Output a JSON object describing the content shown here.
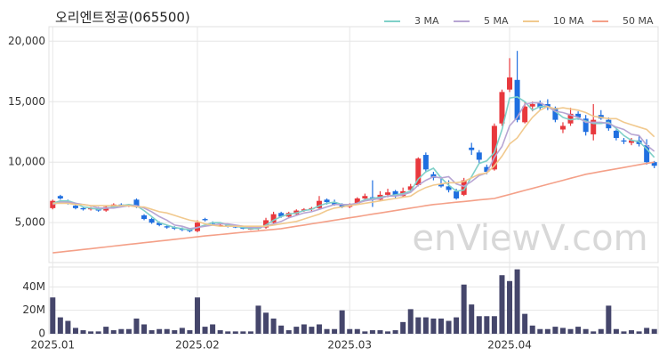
{
  "chart_data": [
    {
      "type": "candlestick",
      "title": "오리엔트정공(065500)",
      "watermark": "enViewV.com",
      "up_color": "#e8383d",
      "down_color": "#1f6fe0",
      "open": [
        6200,
        7200,
        6800,
        6400,
        6200,
        6100,
        6200,
        6000,
        6300,
        6500,
        6400,
        6900,
        5600,
        5300,
        5000,
        4700,
        4600,
        4500,
        4400,
        4300,
        5300,
        5000,
        4750,
        4800,
        4700,
        4600,
        4450,
        4500,
        4600,
        5000,
        5800,
        5500,
        5700,
        6000,
        6100,
        6200,
        6900,
        6700,
        6500,
        6300,
        6600,
        7000,
        7100,
        6900,
        7300,
        7600,
        7200,
        7700,
        8100,
        10600,
        9000,
        8200,
        8000,
        7600,
        7300,
        11200,
        10800,
        9600,
        9400,
        13200,
        16000,
        16800,
        13300,
        14600,
        14900,
        14800,
        14500,
        12700,
        13200,
        14000,
        13600,
        12300,
        13900,
        13500,
        12600,
        11800,
        11600,
        11800,
        11400,
        10000
      ],
      "high": [
        6900,
        7300,
        6900,
        6500,
        6300,
        6300,
        6300,
        6400,
        6600,
        6600,
        6500,
        7000,
        5700,
        5400,
        5100,
        4800,
        4700,
        4600,
        4500,
        5200,
        5400,
        5100,
        4900,
        4850,
        4750,
        4650,
        4600,
        4700,
        5400,
        5900,
        5900,
        5900,
        6100,
        6200,
        6300,
        7200,
        7000,
        6900,
        6600,
        6600,
        7100,
        7400,
        8500,
        7600,
        7800,
        7700,
        7900,
        8200,
        10400,
        10800,
        9200,
        8800,
        8500,
        7800,
        8700,
        11600,
        11000,
        9800,
        13200,
        16000,
        18600,
        19200,
        15000,
        15000,
        15100,
        15200,
        14600,
        13300,
        14500,
        14200,
        13900,
        14800,
        14300,
        13700,
        12700,
        12000,
        12000,
        12200,
        11900,
        10100
      ],
      "low": [
        6100,
        6900,
        6500,
        6100,
        6000,
        6000,
        5900,
        5900,
        6200,
        6300,
        6300,
        6200,
        5200,
        4900,
        4700,
        4500,
        4400,
        4300,
        4200,
        4200,
        5100,
        4800,
        4700,
        4600,
        4550,
        4450,
        4400,
        4400,
        4500,
        4900,
        5400,
        5400,
        5600,
        5900,
        5900,
        6100,
        6500,
        6400,
        6200,
        6200,
        6500,
        6900,
        6300,
        6800,
        7100,
        7000,
        7100,
        7500,
        8000,
        9200,
        8500,
        7900,
        7500,
        6900,
        7200,
        10600,
        9900,
        9000,
        9300,
        13000,
        15800,
        13300,
        13200,
        14200,
        14300,
        14300,
        13300,
        12400,
        13000,
        13500,
        12200,
        11800,
        13500,
        12600,
        11800,
        11500,
        11400,
        11300,
        9800,
        9500
      ],
      "close": [
        6800,
        7000,
        6600,
        6200,
        6100,
        6200,
        6000,
        6300,
        6500,
        6400,
        6500,
        6300,
        5300,
        5000,
        4800,
        4600,
        4500,
        4400,
        4300,
        5000,
        5200,
        4900,
        4800,
        4700,
        4600,
        4500,
        4500,
        4600,
        5200,
        5700,
        5500,
        5800,
        6000,
        6100,
        6200,
        6800,
        6700,
        6500,
        6300,
        6500,
        7000,
        7200,
        6900,
        7300,
        7500,
        7200,
        7600,
        8000,
        10300,
        9400,
        8700,
        8000,
        7700,
        7000,
        8500,
        11000,
        10200,
        9200,
        13000,
        15800,
        17000,
        13500,
        14600,
        14800,
        14500,
        14500,
        13500,
        13000,
        14000,
        13700,
        12500,
        13500,
        13600,
        12800,
        12000,
        11700,
        11800,
        11500,
        10000,
        9700
      ],
      "series": [
        {
          "name": "3 MA",
          "color": "#7fd0c8",
          "values": [
            6600,
            6800,
            6800,
            6600,
            6300,
            6200,
            6100,
            6200,
            6300,
            6400,
            6500,
            6400,
            6000,
            5500,
            5000,
            4800,
            4600,
            4500,
            4400,
            4600,
            4800,
            5000,
            5000,
            4800,
            4700,
            4600,
            4500,
            4500,
            4800,
            5200,
            5500,
            5700,
            5800,
            6000,
            6100,
            6400,
            6600,
            6700,
            6500,
            6400,
            6600,
            6900,
            7000,
            7100,
            7200,
            7300,
            7400,
            7600,
            8600,
            9200,
            9500,
            8700,
            8100,
            7600,
            7700,
            8800,
            9900,
            10100,
            10800,
            12700,
            15300,
            15400,
            15000,
            14300,
            14600,
            14600,
            14200,
            13700,
            13500,
            13600,
            13400,
            13200,
            13200,
            13300,
            12800,
            12200,
            11800,
            11700,
            11100,
            10400
          ]
        },
        {
          "name": "5 MA",
          "color": "#b7a5d3",
          "values": [
            6500,
            6700,
            6700,
            6600,
            6500,
            6400,
            6200,
            6200,
            6200,
            6300,
            6400,
            6400,
            6200,
            5900,
            5500,
            5200,
            4800,
            4700,
            4500,
            4600,
            4700,
            4800,
            4900,
            4900,
            4800,
            4700,
            4600,
            4600,
            4700,
            4900,
            5100,
            5400,
            5600,
            5800,
            5900,
            6100,
            6300,
            6500,
            6500,
            6500,
            6600,
            6800,
            6900,
            7000,
            7200,
            7200,
            7300,
            7500,
            8100,
            8500,
            8800,
            8700,
            8800,
            8200,
            8000,
            8400,
            8900,
            9100,
            10400,
            11300,
            13000,
            13700,
            14800,
            14900,
            14900,
            14600,
            14200,
            14100,
            13900,
            13700,
            13300,
            13300,
            13300,
            13200,
            12900,
            12700,
            12300,
            12200,
            11400,
            10900
          ]
        },
        {
          "name": "10 MA",
          "color": "#f1c98e",
          "values": [
            6600,
            6600,
            6600,
            6500,
            6500,
            6400,
            6400,
            6400,
            6400,
            6400,
            6400,
            6300,
            6300,
            6100,
            5900,
            5800,
            5600,
            5400,
            5200,
            5100,
            4900,
            4800,
            4700,
            4700,
            4700,
            4700,
            4700,
            4700,
            4700,
            4800,
            4900,
            5000,
            5100,
            5300,
            5500,
            5700,
            6000,
            6200,
            6300,
            6400,
            6500,
            6600,
            6700,
            6800,
            6900,
            7000,
            7100,
            7200,
            7600,
            7900,
            8100,
            8200,
            8300,
            8300,
            8400,
            8700,
            9000,
            9100,
            9700,
            10500,
            11500,
            12000,
            12900,
            13700,
            14300,
            14600,
            14400,
            14500,
            14400,
            14300,
            14100,
            13800,
            13700,
            13600,
            13600,
            13300,
            13100,
            12900,
            12700,
            12100
          ]
        },
        {
          "name": "50 MA",
          "color": "#f4a088",
          "values": [
            2500,
            2570,
            2640,
            2710,
            2780,
            2850,
            2920,
            2990,
            3060,
            3130,
            3200,
            3270,
            3340,
            3410,
            3480,
            3550,
            3620,
            3690,
            3760,
            3830,
            3900,
            3960,
            4020,
            4080,
            4140,
            4200,
            4260,
            4320,
            4380,
            4440,
            4500,
            4600,
            4700,
            4800,
            4900,
            5000,
            5100,
            5200,
            5300,
            5400,
            5500,
            5600,
            5700,
            5800,
            5900,
            6000,
            6100,
            6200,
            6300,
            6400,
            6500,
            6560,
            6620,
            6690,
            6750,
            6810,
            6880,
            6940,
            7000,
            7170,
            7330,
            7500,
            7670,
            7830,
            8000,
            8170,
            8330,
            8500,
            8670,
            8830,
            9000,
            9110,
            9230,
            9340,
            9450,
            9560,
            9680,
            9790,
            9900,
            10000
          ]
        }
      ],
      "ylim": [
        1700,
        21200
      ],
      "yticks": [
        {
          "value": 5000,
          "label": "5,000"
        },
        {
          "value": 10000,
          "label": "10,000"
        },
        {
          "value": 15000,
          "label": "15,000"
        },
        {
          "value": 20000,
          "label": "20,000"
        }
      ],
      "grid": true
    },
    {
      "type": "bar",
      "color": "#45466b",
      "categories": [
        "2025.01",
        null,
        null,
        null,
        null,
        null,
        null,
        null,
        null,
        null,
        null,
        null,
        null,
        null,
        null,
        null,
        null,
        null,
        null,
        "2025.02",
        null,
        null,
        null,
        null,
        null,
        null,
        null,
        null,
        null,
        null,
        null,
        null,
        null,
        null,
        null,
        null,
        null,
        null,
        null,
        "2025.03",
        null,
        null,
        null,
        null,
        null,
        null,
        null,
        null,
        null,
        null,
        null,
        null,
        null,
        null,
        null,
        null,
        null,
        null,
        null,
        null,
        "2025.04",
        null,
        null,
        null,
        null,
        null,
        null,
        null,
        null,
        null,
        null,
        null,
        null,
        null,
        null,
        null,
        null,
        null,
        null,
        null
      ],
      "values": [
        31,
        14,
        11,
        5,
        3,
        2,
        2,
        6,
        3,
        4,
        4,
        13,
        8,
        3,
        4,
        4,
        3,
        5,
        3,
        31,
        6,
        8,
        3,
        2,
        2,
        2,
        2,
        24,
        18,
        13,
        7,
        3,
        6,
        8,
        6,
        8,
        4,
        4,
        20,
        4,
        4,
        2,
        3,
        3,
        2,
        3,
        10,
        21,
        14,
        14,
        13,
        13,
        11,
        14,
        42,
        25,
        15,
        15,
        15,
        50,
        45,
        55,
        17,
        7,
        4,
        4,
        6,
        5,
        4,
        6,
        4,
        2,
        4,
        24,
        4,
        2,
        3,
        2,
        5,
        4
      ],
      "ylim": [
        0,
        57
      ],
      "yticks": [
        0,
        {
          "value": 20,
          "label": "20M"
        },
        {
          "value": 40,
          "label": "40M"
        }
      ],
      "grid": true
    }
  ]
}
